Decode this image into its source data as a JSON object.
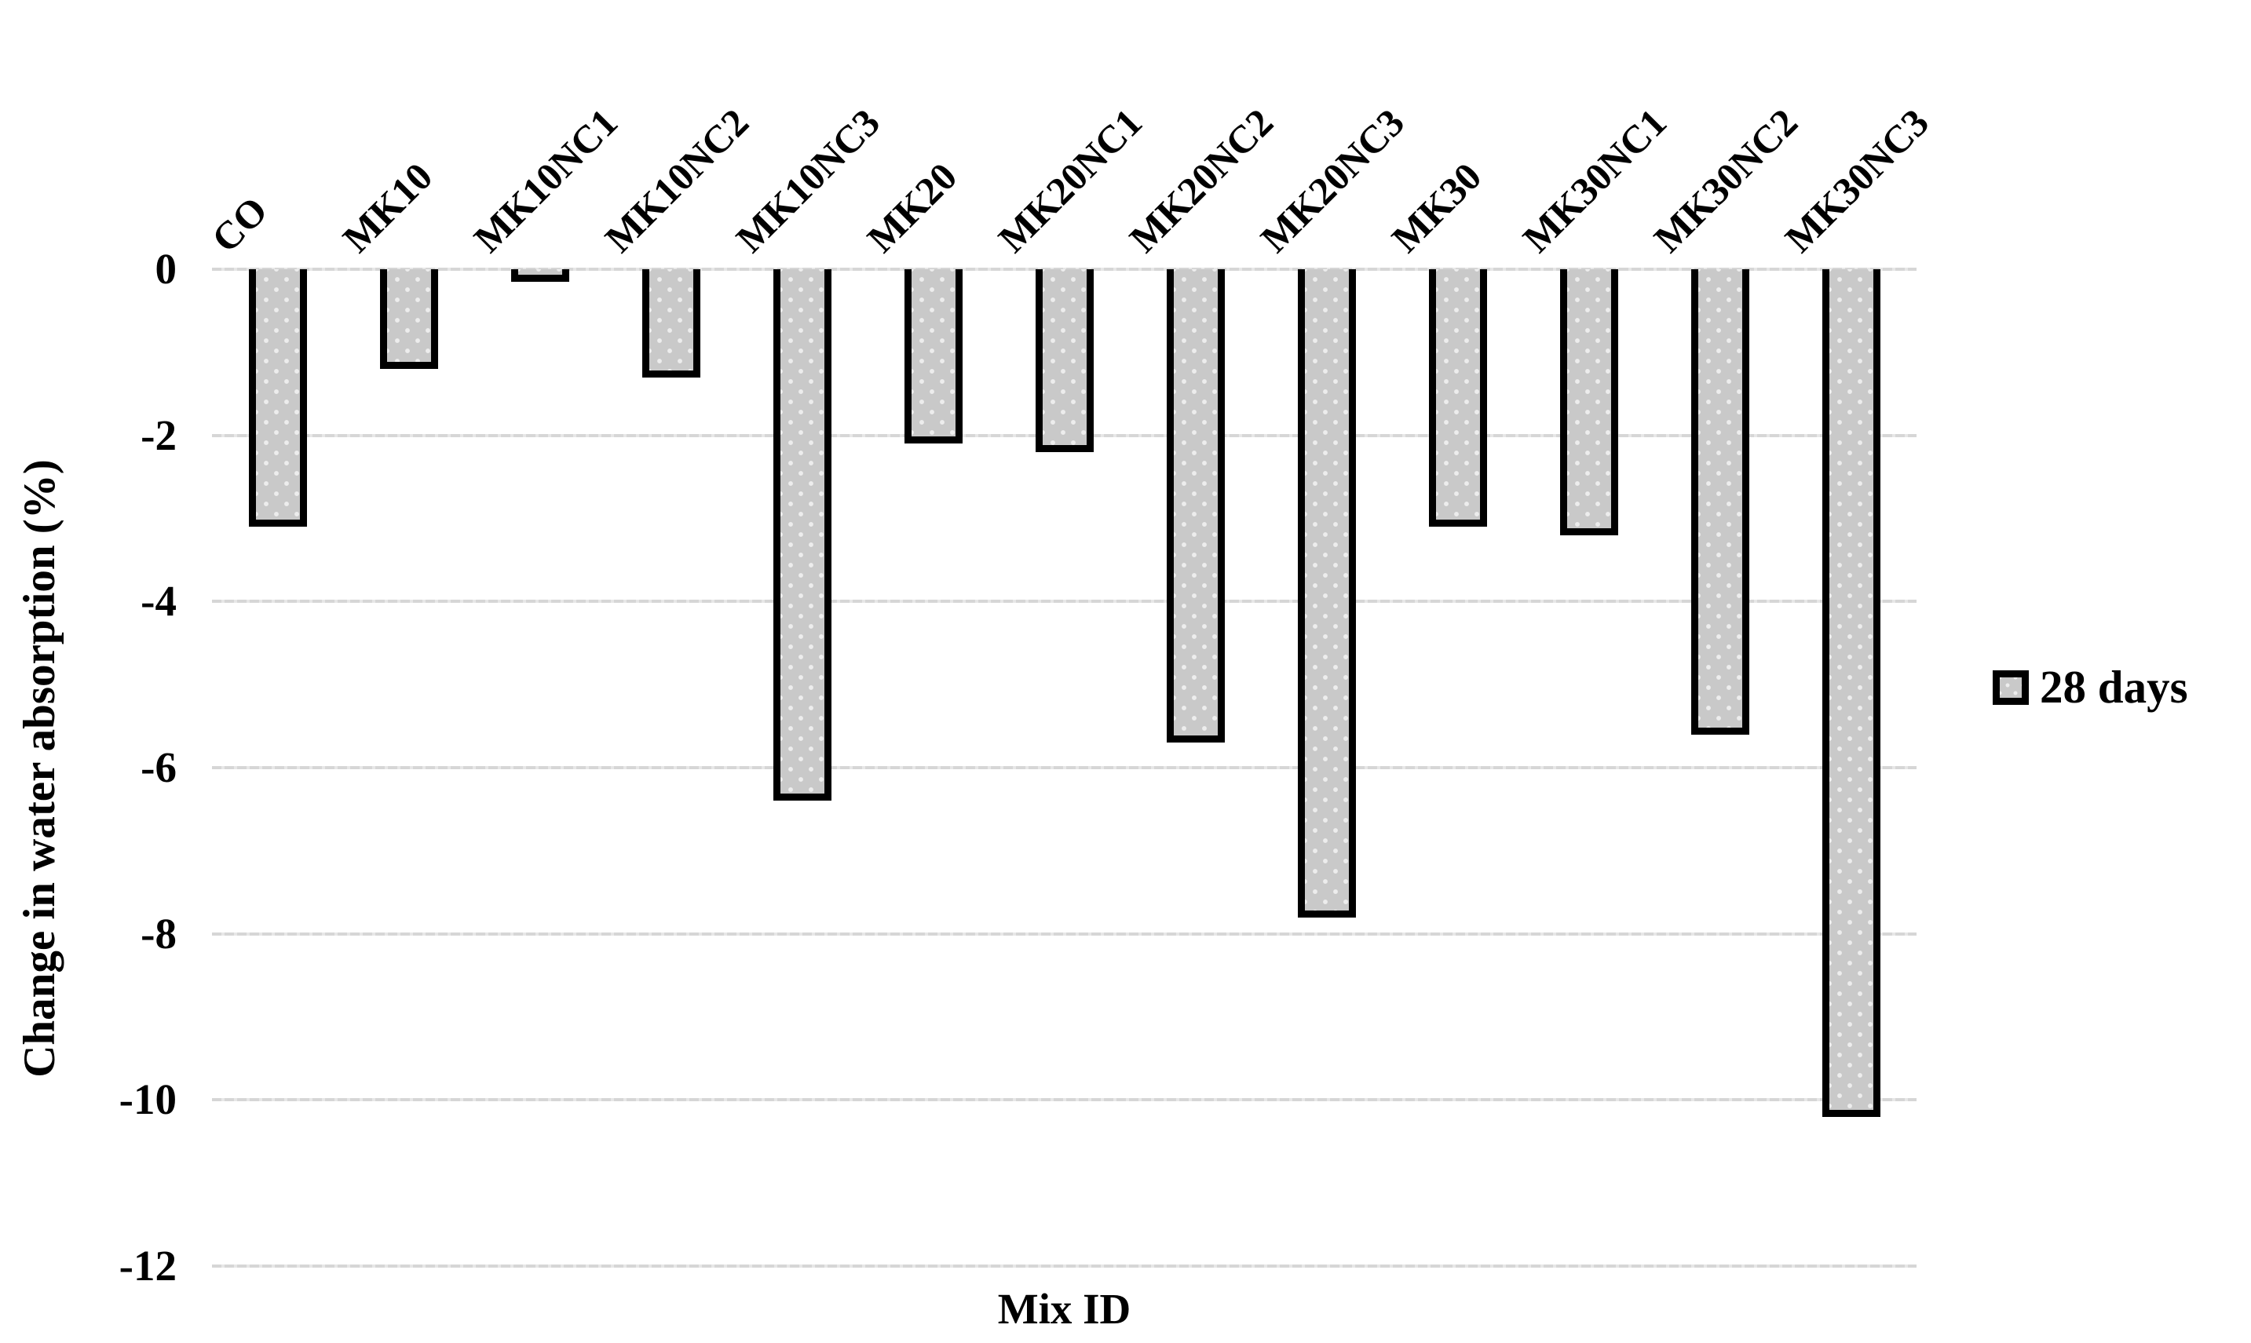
{
  "chart_data": {
    "type": "bar",
    "title": "",
    "xlabel": "Mix ID",
    "ylabel": "Change in water absorption (%)",
    "categories": [
      "CO",
      "MK10",
      "MK10NC1",
      "MK10NC2",
      "MK10NC3",
      "MK20",
      "MK20NC1",
      "MK20NC2",
      "MK20NC3",
      "MK30",
      "MK30NC1",
      "MK30NC2",
      "MK30NC3"
    ],
    "series": [
      {
        "name": "28 days",
        "values": [
          -3.1,
          -1.2,
          -0.15,
          -1.3,
          -6.4,
          -2.1,
          -2.2,
          -5.7,
          -7.8,
          -3.1,
          -3.2,
          -5.6,
          -10.2
        ]
      }
    ],
    "ylim": [
      -12,
      0
    ],
    "yticks": [
      0,
      -2,
      -4,
      -6,
      -8,
      -10,
      -12
    ],
    "ytick_labels": [
      "0",
      "-2",
      "-4",
      "-6",
      "-8",
      "-10",
      "-12"
    ],
    "grid": true,
    "legend_position": "right",
    "colors": {
      "bar_fill": "#c9c9c9",
      "bar_border": "#000000",
      "gridline": "#d6d6d6",
      "text": "#000000",
      "background": "#ffffff"
    }
  },
  "axes": {
    "x_title": "Mix ID",
    "y_title": "Change in water absorption (%)"
  },
  "legend": {
    "label": "28 days"
  }
}
